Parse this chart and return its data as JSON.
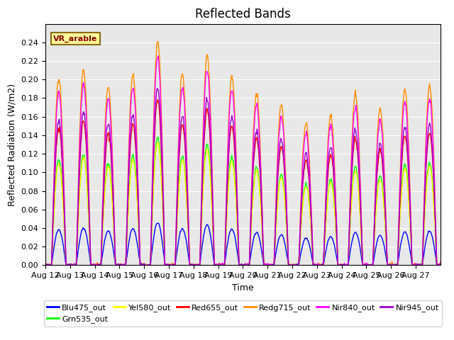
{
  "title": "Reflected Bands",
  "xlabel": "Time",
  "ylabel": "Reflected Radiation (W/m2)",
  "annotation_text": "VR_arable",
  "annotation_color": "#8B0000",
  "annotation_bg": "#FFFF99",
  "annotation_border": "#8B6914",
  "ylim": [
    0.0,
    0.26
  ],
  "yticks": [
    0.0,
    0.02,
    0.04,
    0.06,
    0.08,
    0.1,
    0.12,
    0.14,
    0.16,
    0.18,
    0.2,
    0.22,
    0.24
  ],
  "start_day": 12,
  "n_days": 16,
  "series": [
    {
      "name": "Blu475_out",
      "color": "#0000FF",
      "peak_scale": 0.04,
      "seed": 1
    },
    {
      "name": "Grn535_out",
      "color": "#00FF00",
      "peak_scale": 0.12,
      "seed": 2
    },
    {
      "name": "Yel580_out",
      "color": "#FFFF00",
      "peak_scale": 0.115,
      "seed": 3
    },
    {
      "name": "Red655_out",
      "color": "#FF0000",
      "peak_scale": 0.155,
      "seed": 4
    },
    {
      "name": "Redg715_out",
      "color": "#FF8C00",
      "peak_scale": 0.21,
      "seed": 5
    },
    {
      "name": "Nir840_out",
      "color": "#FF00FF",
      "peak_scale": 0.195,
      "seed": 6
    },
    {
      "name": "Nir945_out",
      "color": "#9900CC",
      "peak_scale": 0.165,
      "seed": 7
    }
  ],
  "day_peaks": [
    0.95,
    1.0,
    0.92,
    0.98,
    1.15,
    0.98,
    1.08,
    0.97,
    0.88,
    0.82,
    0.73,
    0.77,
    0.88,
    0.8,
    0.9,
    0.92
  ],
  "bg_color": "#E8E8E8",
  "fig_bg": "#FFFFFF",
  "line_width": 1.0,
  "title_fontsize": 12,
  "axis_label_fontsize": 9,
  "tick_fontsize": 8
}
